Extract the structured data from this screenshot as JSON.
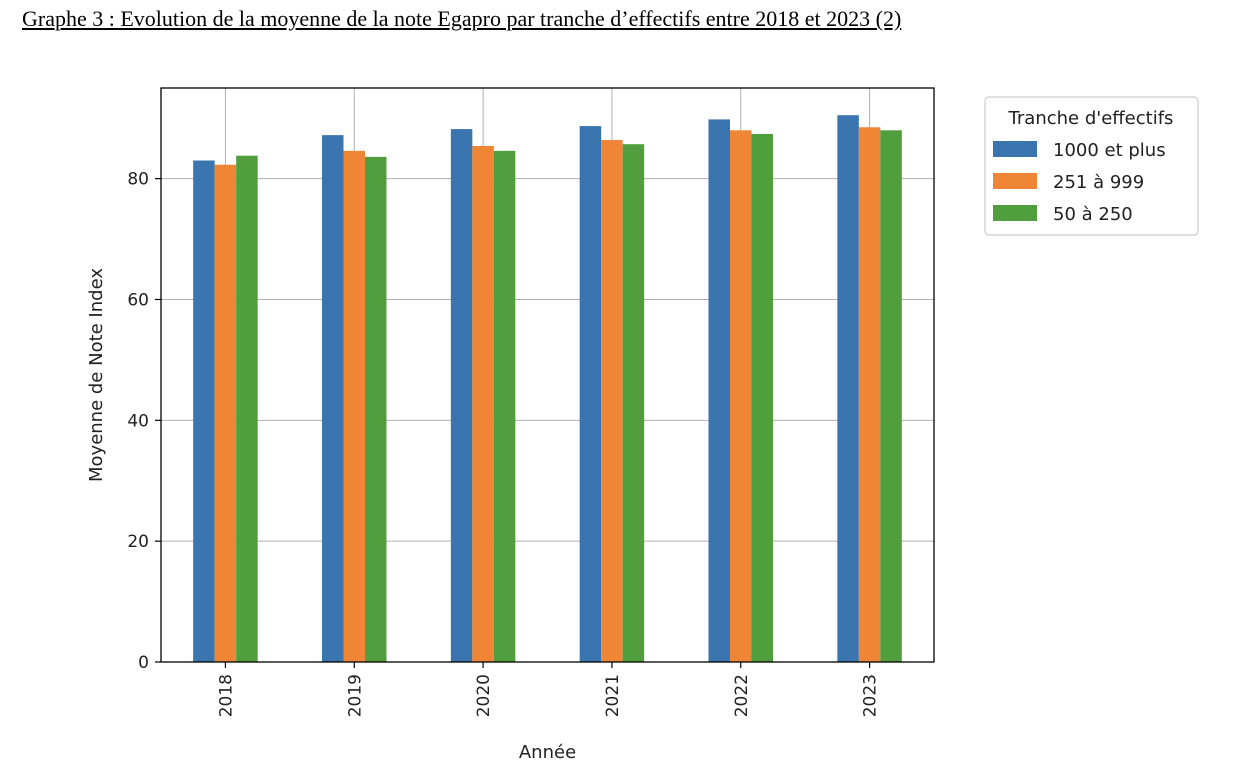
{
  "figure_title": "Graphe 3 : Evolution de la moyenne de la note Egapro par tranche d’effectifs entre 2018 et 2023 (2)",
  "chart_data": {
    "type": "bar",
    "title": "",
    "xlabel": "Année",
    "ylabel": "Moyenne de Note Index",
    "categories": [
      "2018",
      "2019",
      "2020",
      "2021",
      "2022",
      "2023"
    ],
    "ylim": [
      0,
      95
    ],
    "yticks": [
      0,
      20,
      40,
      60,
      80
    ],
    "grid": true,
    "legend": {
      "title": "Tranche d'effectifs",
      "placement": "outside-upper-right"
    },
    "series": [
      {
        "name": "1000 et plus",
        "color": "#3a75b0",
        "values": [
          83.0,
          87.2,
          88.2,
          88.7,
          89.8,
          90.5
        ]
      },
      {
        "name": "251 à 999",
        "color": "#ef8636",
        "values": [
          82.3,
          84.6,
          85.4,
          86.4,
          88.0,
          88.5
        ]
      },
      {
        "name": "50 à 250",
        "color": "#519e3e",
        "values": [
          83.8,
          83.6,
          84.6,
          85.7,
          87.4,
          88.0
        ]
      }
    ]
  }
}
